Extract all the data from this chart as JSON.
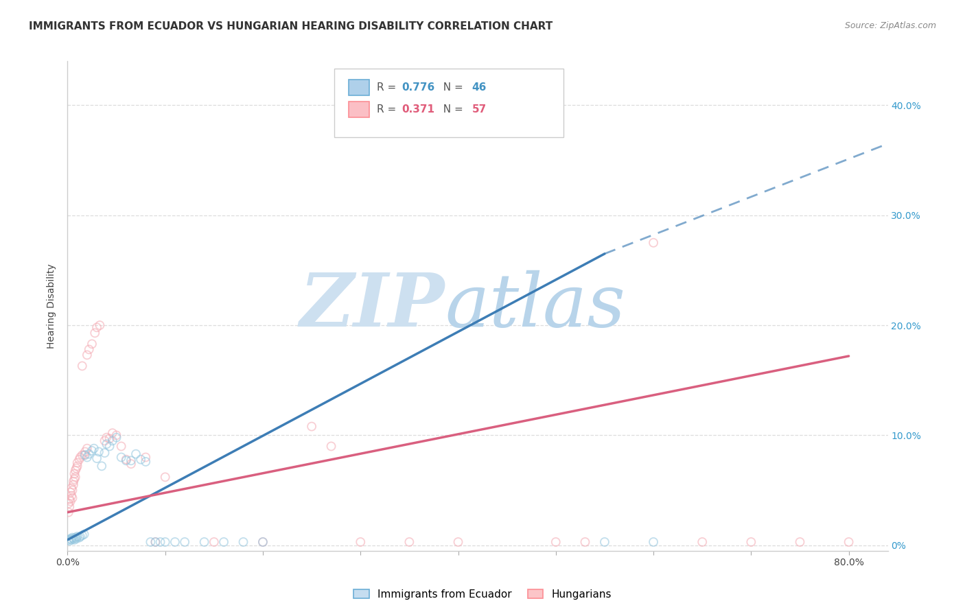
{
  "title": "IMMIGRANTS FROM ECUADOR VS HUNGARIAN HEARING DISABILITY CORRELATION CHART",
  "source": "Source: ZipAtlas.com",
  "ylabel": "Hearing Disability",
  "right_ytick_labels": [
    "0%",
    "10.0%",
    "20.0%",
    "30.0%",
    "40.0%"
  ],
  "right_ytick_vals": [
    0.0,
    0.1,
    0.2,
    0.3,
    0.4
  ],
  "xlim": [
    0.0,
    0.84
  ],
  "ylim": [
    -0.005,
    0.44
  ],
  "legend_r1": "R = 0.776",
  "legend_n1": "N = 46",
  "legend_r2": "R = 0.371",
  "legend_n2": "N = 57",
  "ecuador_scatter": [
    [
      0.001,
      0.005
    ],
    [
      0.002,
      0.004
    ],
    [
      0.003,
      0.006
    ],
    [
      0.004,
      0.005
    ],
    [
      0.005,
      0.007
    ],
    [
      0.006,
      0.006
    ],
    [
      0.007,
      0.005
    ],
    [
      0.008,
      0.007
    ],
    [
      0.009,
      0.006
    ],
    [
      0.01,
      0.008
    ],
    [
      0.012,
      0.007
    ],
    [
      0.013,
      0.008
    ],
    [
      0.015,
      0.009
    ],
    [
      0.017,
      0.01
    ],
    [
      0.018,
      0.082
    ],
    [
      0.02,
      0.08
    ],
    [
      0.022,
      0.083
    ],
    [
      0.025,
      0.086
    ],
    [
      0.027,
      0.088
    ],
    [
      0.03,
      0.079
    ],
    [
      0.032,
      0.085
    ],
    [
      0.035,
      0.072
    ],
    [
      0.038,
      0.084
    ],
    [
      0.04,
      0.092
    ],
    [
      0.043,
      0.09
    ],
    [
      0.046,
      0.095
    ],
    [
      0.05,
      0.098
    ],
    [
      0.055,
      0.08
    ],
    [
      0.06,
      0.077
    ],
    [
      0.065,
      0.077
    ],
    [
      0.07,
      0.083
    ],
    [
      0.075,
      0.078
    ],
    [
      0.08,
      0.076
    ],
    [
      0.085,
      0.003
    ],
    [
      0.09,
      0.003
    ],
    [
      0.095,
      0.003
    ],
    [
      0.1,
      0.003
    ],
    [
      0.11,
      0.003
    ],
    [
      0.12,
      0.003
    ],
    [
      0.14,
      0.003
    ],
    [
      0.16,
      0.003
    ],
    [
      0.18,
      0.003
    ],
    [
      0.2,
      0.003
    ],
    [
      0.5,
      0.39
    ],
    [
      0.55,
      0.003
    ],
    [
      0.6,
      0.003
    ]
  ],
  "hungarian_scatter": [
    [
      0.001,
      0.03
    ],
    [
      0.001,
      0.038
    ],
    [
      0.002,
      0.035
    ],
    [
      0.002,
      0.042
    ],
    [
      0.003,
      0.04
    ],
    [
      0.003,
      0.048
    ],
    [
      0.004,
      0.045
    ],
    [
      0.004,
      0.052
    ],
    [
      0.005,
      0.043
    ],
    [
      0.005,
      0.05
    ],
    [
      0.006,
      0.055
    ],
    [
      0.006,
      0.058
    ],
    [
      0.007,
      0.06
    ],
    [
      0.007,
      0.065
    ],
    [
      0.008,
      0.062
    ],
    [
      0.008,
      0.068
    ],
    [
      0.009,
      0.07
    ],
    [
      0.01,
      0.072
    ],
    [
      0.01,
      0.075
    ],
    [
      0.012,
      0.078
    ],
    [
      0.013,
      0.08
    ],
    [
      0.015,
      0.082
    ],
    [
      0.015,
      0.163
    ],
    [
      0.017,
      0.082
    ],
    [
      0.018,
      0.085
    ],
    [
      0.02,
      0.088
    ],
    [
      0.02,
      0.173
    ],
    [
      0.022,
      0.178
    ],
    [
      0.025,
      0.183
    ],
    [
      0.028,
      0.193
    ],
    [
      0.03,
      0.198
    ],
    [
      0.033,
      0.2
    ],
    [
      0.038,
      0.095
    ],
    [
      0.04,
      0.098
    ],
    [
      0.043,
      0.097
    ],
    [
      0.046,
      0.102
    ],
    [
      0.05,
      0.1
    ],
    [
      0.055,
      0.09
    ],
    [
      0.06,
      0.078
    ],
    [
      0.065,
      0.074
    ],
    [
      0.08,
      0.08
    ],
    [
      0.09,
      0.003
    ],
    [
      0.1,
      0.062
    ],
    [
      0.15,
      0.003
    ],
    [
      0.2,
      0.003
    ],
    [
      0.25,
      0.108
    ],
    [
      0.27,
      0.09
    ],
    [
      0.3,
      0.003
    ],
    [
      0.35,
      0.003
    ],
    [
      0.4,
      0.003
    ],
    [
      0.5,
      0.003
    ],
    [
      0.53,
      0.003
    ],
    [
      0.6,
      0.275
    ],
    [
      0.65,
      0.003
    ],
    [
      0.7,
      0.003
    ],
    [
      0.75,
      0.003
    ],
    [
      0.8,
      0.003
    ]
  ],
  "ecuador_line_solid": [
    [
      0.0,
      0.005
    ],
    [
      0.55,
      0.265
    ]
  ],
  "ecuador_line_dashed": [
    [
      0.55,
      0.265
    ],
    [
      0.84,
      0.365
    ]
  ],
  "hungarian_line": [
    [
      0.0,
      0.03
    ],
    [
      0.8,
      0.172
    ]
  ],
  "scatter_alpha": 0.55,
  "scatter_size": 75,
  "ecuador_color": "#92c5de",
  "hungarian_color": "#f4a9b2",
  "line_blue": "#3d7db5",
  "line_pink": "#d95f7f",
  "background_color": "#ffffff",
  "grid_color": "#dddddd",
  "watermark_zip_color": "#cde0f0",
  "watermark_atlas_color": "#b8d4ea",
  "title_fontsize": 11,
  "source_fontsize": 9,
  "legend_blue_color": "#4393c3",
  "legend_pink_color": "#e05c7a",
  "legend_n_blue": "#3399ff",
  "legend_n_pink": "#ff6680"
}
